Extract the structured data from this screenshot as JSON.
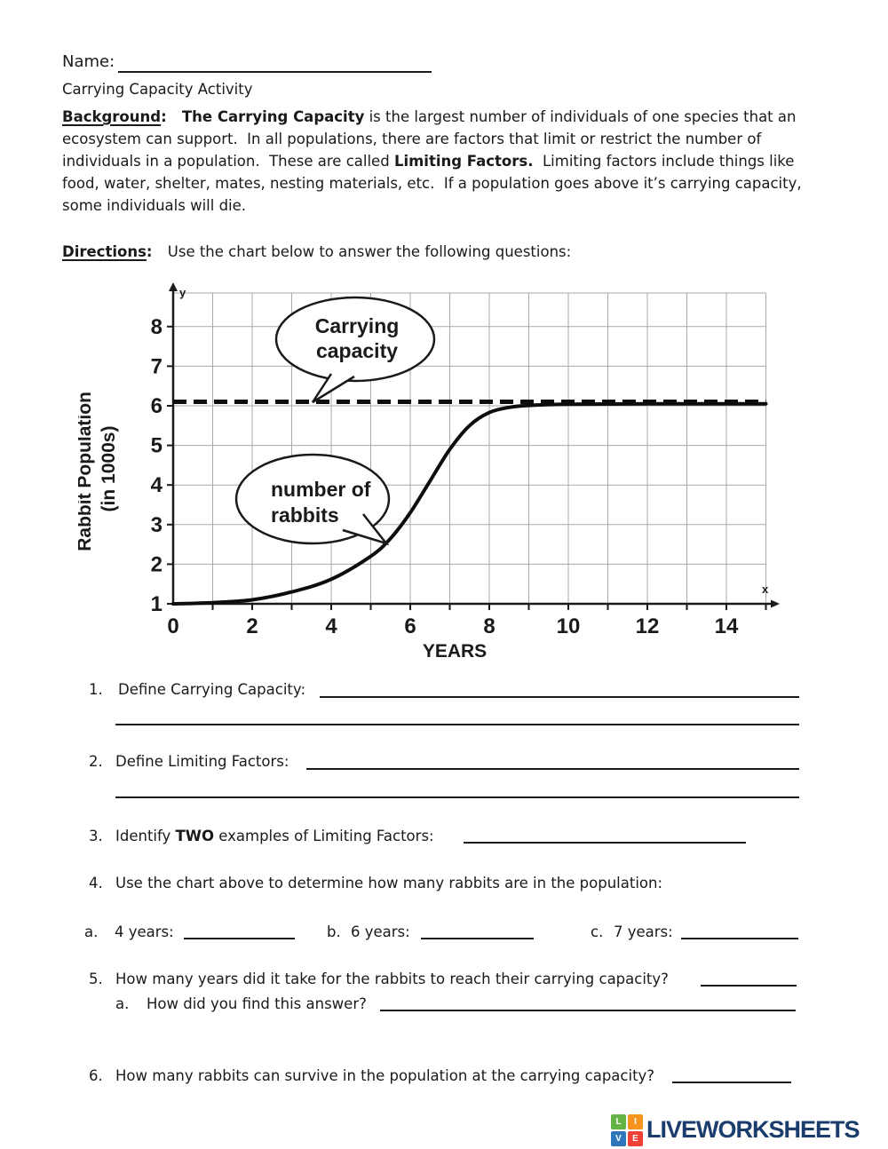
{
  "header": {
    "name_label": "Name:",
    "title": "Carrying Capacity Activity"
  },
  "background": {
    "segments": [
      {
        "text": "Background"
      },
      {
        "text": ":   The "
      },
      {
        "text": "Carrying Capacity"
      },
      {
        "text": " is the largest number of individuals of one species that an ecosystem can support.  In all populations, there are factors that limit or restrict the number of individuals in a population.  These are called "
      },
      {
        "text": "Limiting Factors."
      },
      {
        "text": "  Limiting factors include things like food, water, shelter, mates, nesting materials, etc.  If a population goes above it’s carrying capacity, some individuals will die."
      }
    ]
  },
  "directions": {
    "label": "Directions",
    "sep": ":   ",
    "text": "Use the chart below to answer the following questions:"
  },
  "chart_data": {
    "type": "line",
    "xlabel": "YEARS",
    "ylabel_line1": "Rabbit Population",
    "ylabel_line2": "(in 1000s)",
    "axis_letter_x": "x",
    "axis_letter_y": "y",
    "xlim": [
      0,
      15
    ],
    "ylim": [
      1,
      9
    ],
    "grid": true,
    "x_ticks": [
      0,
      2,
      4,
      6,
      8,
      10,
      12,
      14
    ],
    "y_ticks": [
      1,
      2,
      3,
      4,
      5,
      6,
      7,
      8
    ],
    "series": [
      {
        "name": "number of rabbits",
        "type": "curve",
        "x": [
          0,
          1,
          2,
          3,
          4,
          5,
          5.5,
          6,
          6.5,
          7,
          7.5,
          8,
          8.5,
          9,
          10,
          12,
          15
        ],
        "y": [
          1.0,
          1.03,
          1.1,
          1.3,
          1.62,
          2.2,
          2.65,
          3.3,
          4.1,
          4.9,
          5.5,
          5.83,
          5.96,
          6.01,
          6.04,
          6.05,
          6.05
        ]
      },
      {
        "name": "Carrying capacity",
        "type": "hline",
        "style": "dashed",
        "y": 6.1
      }
    ],
    "annotations": {
      "bubble1_line1": "Carrying",
      "bubble1_line2": "capacity",
      "bubble2_line1": "number of",
      "bubble2_line2": "rabbits"
    }
  },
  "questions": {
    "q1": {
      "num": "1.",
      "label": "Define Carrying Capacity:"
    },
    "q2": {
      "num": "2.",
      "label": "Define Limiting Factors:"
    },
    "q3": {
      "num": "3.",
      "pre": "Identify ",
      "bold": "TWO",
      "post": " examples of Limiting Factors:"
    },
    "q4": {
      "num": "4.",
      "label": "Use the chart above to determine how many rabbits are in the population:"
    },
    "q4_sub": [
      {
        "letter": "a.",
        "label": "4 years:"
      },
      {
        "letter": "b.",
        "label": "6 years:"
      },
      {
        "letter": "c.",
        "label": "7 years:"
      }
    ],
    "q5": {
      "num": "5.",
      "label": "How many years did it take for the rabbits to reach their carrying capacity?"
    },
    "q5a": {
      "letter": "a.",
      "label": "How did you find this answer?"
    },
    "q6": {
      "num": "6.",
      "label": "How many rabbits can survive in the population at the carrying capacity?"
    }
  },
  "footer": {
    "logo_text": "LIVEWORKSHEETS",
    "logo_text_color": "#1b3d6d",
    "logo_squares": [
      {
        "letter": "L",
        "color": "#63b345"
      },
      {
        "letter": "I",
        "color": "#f7941e"
      },
      {
        "letter": "V",
        "color": "#2e75bb"
      },
      {
        "letter": "E",
        "color": "#ee4036"
      }
    ]
  }
}
